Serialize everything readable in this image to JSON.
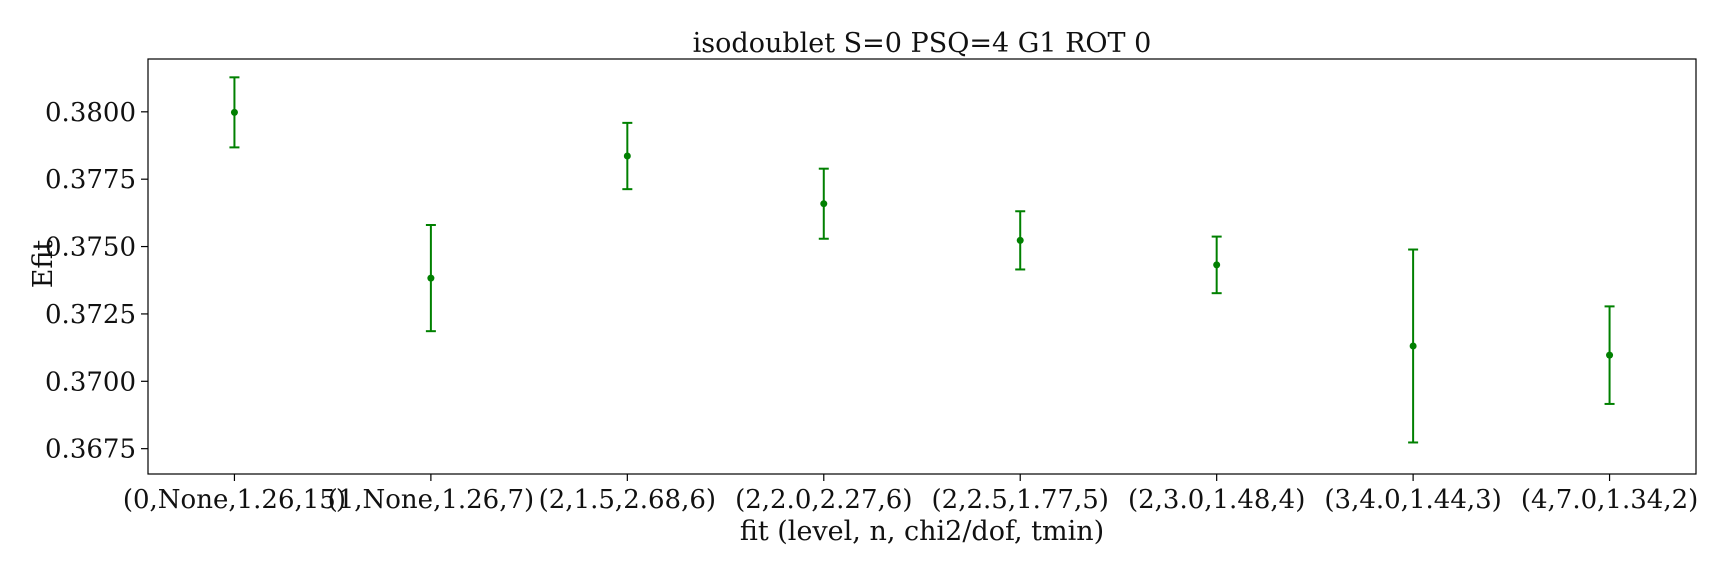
{
  "chart_data": {
    "type": "scatter",
    "title": "isodoublet S=0 PSQ=4 G1 ROT 0",
    "xlabel": "fit (level, n, chi2/dof, tmin)",
    "ylabel": "Efit",
    "categories": [
      "(0,None,1.26,15)",
      "(1,None,1.26,7)",
      "(2,1.5,2.68,6)",
      "(2,2.0,2.27,6)",
      "(2,2.5,1.77,5)",
      "(2,3.0,1.48,4)",
      "(3,4.0,1.44,3)",
      "(4,7.0,1.34,2)"
    ],
    "series": [
      {
        "values": [
          0.37998,
          0.37383,
          0.37836,
          0.37659,
          0.37523,
          0.37432,
          0.37131,
          0.37097
        ],
        "errors": [
          0.0013,
          0.00197,
          0.00123,
          0.0013,
          0.00108,
          0.00105,
          0.00358,
          0.00181
        ]
      }
    ],
    "ylim": [
      0.36656,
      0.38196
    ],
    "yticks": [
      0.3675,
      0.37,
      0.3725,
      0.375,
      0.3775,
      0.38
    ],
    "ytick_labels": [
      "0.3675",
      "0.3700",
      "0.3725",
      "0.3750",
      "0.3775",
      "0.3800"
    ],
    "grid": false,
    "color": "#008000"
  }
}
